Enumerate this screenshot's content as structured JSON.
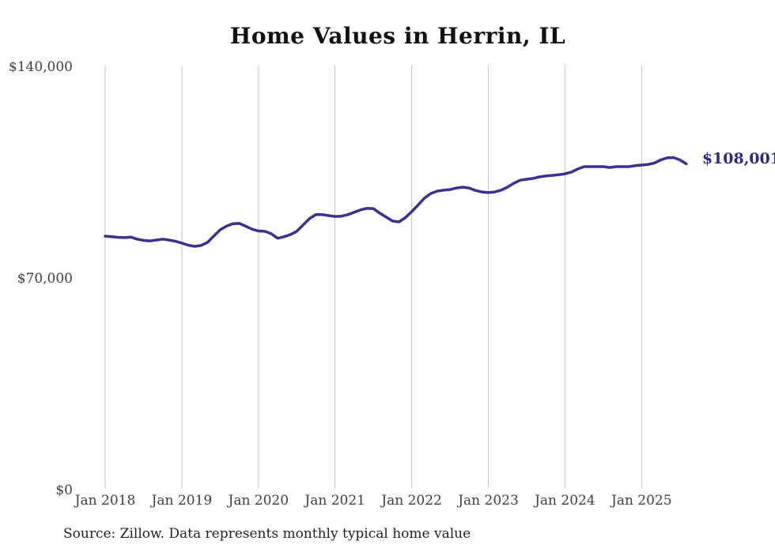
{
  "page": {
    "background_color": "#ffffff"
  },
  "chart": {
    "source_note": "Source: Zillow. Data represents monthly typical home value"
  },
  "chart_data": {
    "type": "line",
    "title": "Home Values in Herrin, IL",
    "xlabel": "",
    "ylabel": "",
    "ylim": [
      0,
      140000
    ],
    "grid": "vertical",
    "legend": "none",
    "line_color": "#3b3191",
    "end_label_color": "#2b2a80",
    "grid_color": "#c6c6c6",
    "end_label": "$108,001",
    "y_ticks": [
      {
        "v": 140000,
        "label": "$140,000"
      },
      {
        "v": 70000,
        "label": "$70,000"
      },
      {
        "v": 0,
        "label": "$0"
      }
    ],
    "x_ticks": [
      {
        "m": 0,
        "label": "Jan 2018"
      },
      {
        "m": 12,
        "label": "Jan 2019"
      },
      {
        "m": 24,
        "label": "Jan 2020"
      },
      {
        "m": 36,
        "label": "Jan 2021"
      },
      {
        "m": 48,
        "label": "Jan 2022"
      },
      {
        "m": 60,
        "label": "Jan 2023"
      },
      {
        "m": 72,
        "label": "Jan 2024"
      },
      {
        "m": 84,
        "label": "Jan 2025"
      }
    ],
    "x": [
      "2018-01",
      "2018-02",
      "2018-03",
      "2018-04",
      "2018-05",
      "2018-06",
      "2018-07",
      "2018-08",
      "2018-09",
      "2018-10",
      "2018-11",
      "2018-12",
      "2019-01",
      "2019-02",
      "2019-03",
      "2019-04",
      "2019-05",
      "2019-06",
      "2019-07",
      "2019-08",
      "2019-09",
      "2019-10",
      "2019-11",
      "2019-12",
      "2020-01",
      "2020-02",
      "2020-03",
      "2020-04",
      "2020-05",
      "2020-06",
      "2020-07",
      "2020-08",
      "2020-09",
      "2020-10",
      "2020-11",
      "2020-12",
      "2021-01",
      "2021-02",
      "2021-03",
      "2021-04",
      "2021-05",
      "2021-06",
      "2021-07",
      "2021-08",
      "2021-09",
      "2021-10",
      "2021-11",
      "2021-12",
      "2022-01",
      "2022-02",
      "2022-03",
      "2022-04",
      "2022-05",
      "2022-06",
      "2022-07",
      "2022-08",
      "2022-09",
      "2022-10",
      "2022-11",
      "2022-12",
      "2023-01",
      "2023-02",
      "2023-03",
      "2023-04",
      "2023-05",
      "2023-06",
      "2023-07",
      "2023-08",
      "2023-09",
      "2023-10",
      "2023-11",
      "2023-12",
      "2024-01",
      "2024-02",
      "2024-03",
      "2024-04",
      "2024-05",
      "2024-06",
      "2024-07",
      "2024-08",
      "2024-09",
      "2024-10",
      "2024-11",
      "2024-12",
      "2025-01",
      "2025-02",
      "2025-03",
      "2025-04",
      "2025-05",
      "2025-06",
      "2025-07",
      "2025-08"
    ],
    "values": [
      84100,
      83900,
      83700,
      83600,
      83800,
      83100,
      82700,
      82500,
      82800,
      83100,
      82800,
      82400,
      81800,
      81100,
      80700,
      81000,
      82000,
      84100,
      86200,
      87400,
      88200,
      88300,
      87400,
      86400,
      85800,
      85700,
      84900,
      83400,
      83900,
      84600,
      85700,
      87800,
      89900,
      91200,
      91200,
      90900,
      90600,
      90700,
      91200,
      92000,
      92800,
      93300,
      93200,
      91700,
      90400,
      89100,
      88800,
      90200,
      92200,
      94400,
      96700,
      98200,
      99000,
      99300,
      99500,
      100000,
      100300,
      100000,
      99200,
      98700,
      98500,
      98700,
      99300,
      100300,
      101600,
      102600,
      102900,
      103200,
      103700,
      104000,
      104200,
      104400,
      104700,
      105300,
      106300,
      107100,
      107100,
      107100,
      107100,
      106800,
      107100,
      107100,
      107100,
      107400,
      107600,
      107800,
      108300,
      109300,
      110000,
      110100,
      109300,
      108001
    ]
  }
}
